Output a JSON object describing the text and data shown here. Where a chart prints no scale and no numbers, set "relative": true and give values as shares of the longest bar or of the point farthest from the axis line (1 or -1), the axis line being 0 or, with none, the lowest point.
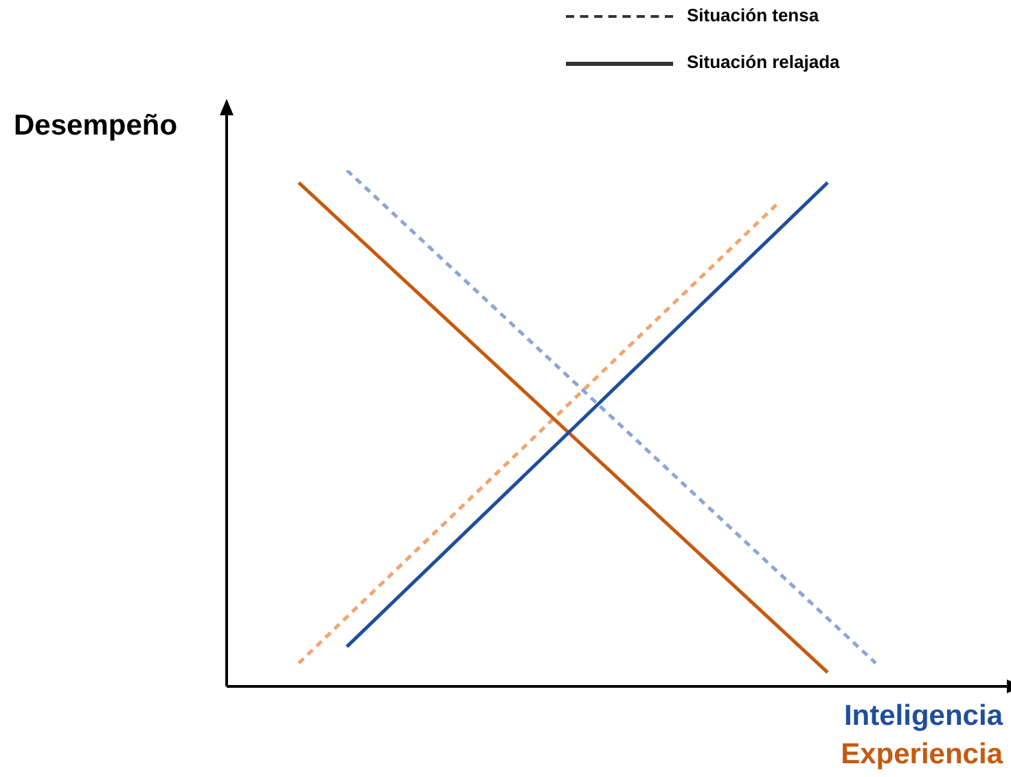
{
  "chart_data": {
    "type": "line",
    "relative": true,
    "ylabel": "Desempeño",
    "categories": [
      null,
      null,
      null,
      null,
      null,
      null,
      null,
      null,
      null,
      null,
      null,
      null,
      null,
      null,
      null,
      null
    ],
    "series": [
      {
        "name": "Inteligencia",
        "color": "#1f4e9c",
        "line_style": "solid",
        "values": [
          null,
          null,
          0.077,
          null,
          null,
          null,
          null,
          null,
          null,
          null,
          null,
          null,
          0.976,
          null,
          null,
          null
        ]
      },
      {
        "color": "#8ea6d4",
        "line_style": "dashed",
        "values": [
          null,
          null,
          1,
          null,
          null,
          null,
          null,
          null,
          null,
          null,
          null,
          null,
          null,
          0.045,
          null,
          null
        ]
      },
      {
        "name": "Experiencia",
        "color": "#c55a11",
        "line_style": "solid",
        "values": [
          null,
          0.976,
          null,
          null,
          null,
          null,
          null,
          null,
          null,
          null,
          null,
          null,
          0.027,
          null,
          null,
          null
        ]
      },
      {
        "color": "#f2a46e",
        "line_style": "dashed",
        "values": [
          null,
          0.045,
          null,
          null,
          null,
          null,
          null,
          null,
          null,
          null,
          null,
          0.939,
          null,
          null,
          null,
          null
        ]
      }
    ],
    "annotations": [
      "Situación tensa",
      "Situación relajada"
    ],
    "legend": false,
    "grid": false,
    "marker": "none"
  }
}
